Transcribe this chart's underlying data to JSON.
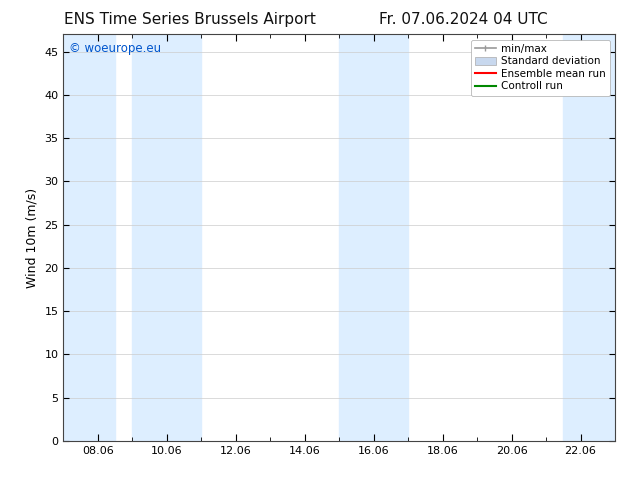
{
  "title_left": "ENS Time Series Brussels Airport",
  "title_right": "Fr. 07.06.2024 04 UTC",
  "ylabel": "Wind 10m (m/s)",
  "watermark": "© woeurope.eu",
  "watermark_color": "#0055cc",
  "xlim_start": 7.0,
  "xlim_end": 23.0,
  "ylim": [
    0,
    47
  ],
  "yticks": [
    0,
    5,
    10,
    15,
    20,
    25,
    30,
    35,
    40,
    45
  ],
  "xtick_labels": [
    "08.06",
    "10.06",
    "12.06",
    "14.06",
    "16.06",
    "18.06",
    "20.06",
    "22.06"
  ],
  "xtick_positions": [
    8.0,
    10.0,
    12.0,
    14.0,
    16.0,
    18.0,
    20.0,
    22.0
  ],
  "shaded_bands": [
    [
      7.0,
      8.5
    ],
    [
      9.0,
      11.0
    ],
    [
      15.0,
      17.0
    ],
    [
      21.5,
      23.0
    ]
  ],
  "band_color": "#ddeeff",
  "background_color": "#ffffff",
  "grid_color": "#cccccc",
  "legend_items": [
    {
      "label": "min/max",
      "color": "#999999",
      "lw": 1.2
    },
    {
      "label": "Standard deviation",
      "color": "#c8d8ee",
      "lw": 6
    },
    {
      "label": "Ensemble mean run",
      "color": "#ff0000",
      "lw": 1.5
    },
    {
      "label": "Controll run",
      "color": "#008800",
      "lw": 1.5
    }
  ],
  "title_fontsize": 11,
  "label_fontsize": 9,
  "tick_fontsize": 8,
  "legend_fontsize": 7.5
}
